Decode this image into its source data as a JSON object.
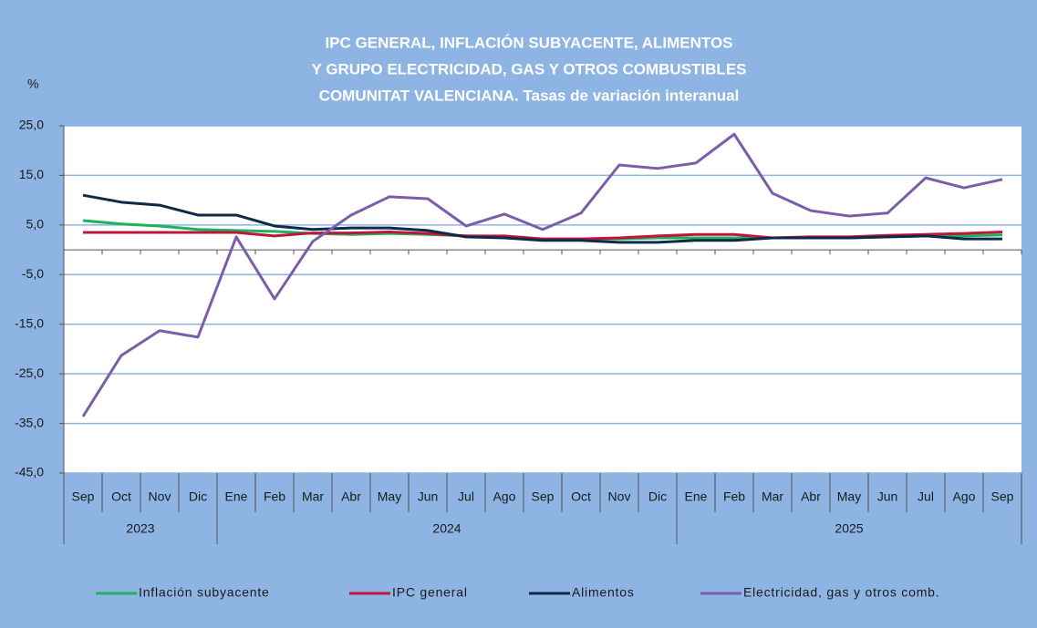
{
  "chart_data": {
    "type": "line",
    "title": [
      "IPC GENERAL, INFLACIÓN SUBYACENTE, ALIMENTOS",
      "Y GRUPO ELECTRICIDAD, GAS Y OTROS COMBUSTIBLES",
      "COMUNITAT VALENCIANA. Tasas de variación interanual"
    ],
    "y_label": "%",
    "year_groups": [
      {
        "label": "2023",
        "categories": [
          "Sep",
          "Oct",
          "Nov",
          "Dic"
        ]
      },
      {
        "label": "2024",
        "categories": [
          "Ene",
          "Feb",
          "Mar",
          "Abr",
          "May",
          "Jun",
          "Jul",
          "Ago",
          "Sep",
          "Oct",
          "Nov",
          "Dic"
        ]
      },
      {
        "label": "2025",
        "categories": [
          "Ene",
          "Feb",
          "Mar",
          "Abr",
          "May",
          "Jun",
          "Jul",
          "Ago",
          "Sep"
        ]
      }
    ],
    "ylim": [
      -45,
      25
    ],
    "yticks": [
      {
        "value": 25,
        "label": "25,0"
      },
      {
        "value": 15,
        "label": "15,0"
      },
      {
        "value": 5,
        "label": "5,0"
      },
      {
        "value": -5,
        "label": "-5,0"
      },
      {
        "value": -15,
        "label": "-15,0"
      },
      {
        "value": -25,
        "label": "-25,0"
      },
      {
        "value": -35,
        "label": "-35,0"
      },
      {
        "value": -45,
        "label": "-45,0"
      }
    ],
    "grid": true,
    "series": [
      {
        "name": "Inflación subyacente",
        "color": "#1db35a",
        "values": [
          5.9,
          5.2,
          4.8,
          4.1,
          3.9,
          3.7,
          3.3,
          3.1,
          3.3,
          3.1,
          2.8,
          2.6,
          2.2,
          2.2,
          2.2,
          2.4,
          2.4,
          2.4,
          2.4,
          2.4,
          2.4,
          2.6,
          2.8,
          2.8,
          3.0
        ]
      },
      {
        "name": "IPC general",
        "color": "#c0143c",
        "values": [
          3.5,
          3.5,
          3.5,
          3.5,
          3.5,
          2.8,
          3.4,
          3.4,
          3.6,
          3.3,
          2.8,
          2.8,
          2.2,
          2.2,
          2.4,
          2.8,
          3.1,
          3.1,
          2.4,
          2.6,
          2.6,
          2.9,
          3.1,
          3.3,
          3.6
        ]
      },
      {
        "name": "Alimentos",
        "color": "#0d2a4a",
        "values": [
          11.0,
          9.6,
          9.0,
          7.0,
          7.0,
          4.8,
          4.1,
          4.4,
          4.4,
          3.9,
          2.6,
          2.4,
          1.9,
          1.9,
          1.5,
          1.5,
          1.9,
          1.9,
          2.4,
          2.4,
          2.4,
          2.6,
          2.8,
          2.2,
          2.2
        ]
      },
      {
        "name": "Electricidad, gas y otros comb.",
        "color": "#7b5ea7",
        "values": [
          -33.6,
          -21.3,
          -16.3,
          -17.6,
          2.6,
          -9.9,
          1.7,
          7.0,
          10.7,
          10.3,
          4.8,
          7.2,
          4.1,
          7.4,
          17.1,
          16.4,
          17.5,
          23.3,
          11.4,
          7.9,
          6.8,
          7.4,
          14.5,
          12.5,
          14.2
        ]
      }
    ]
  }
}
